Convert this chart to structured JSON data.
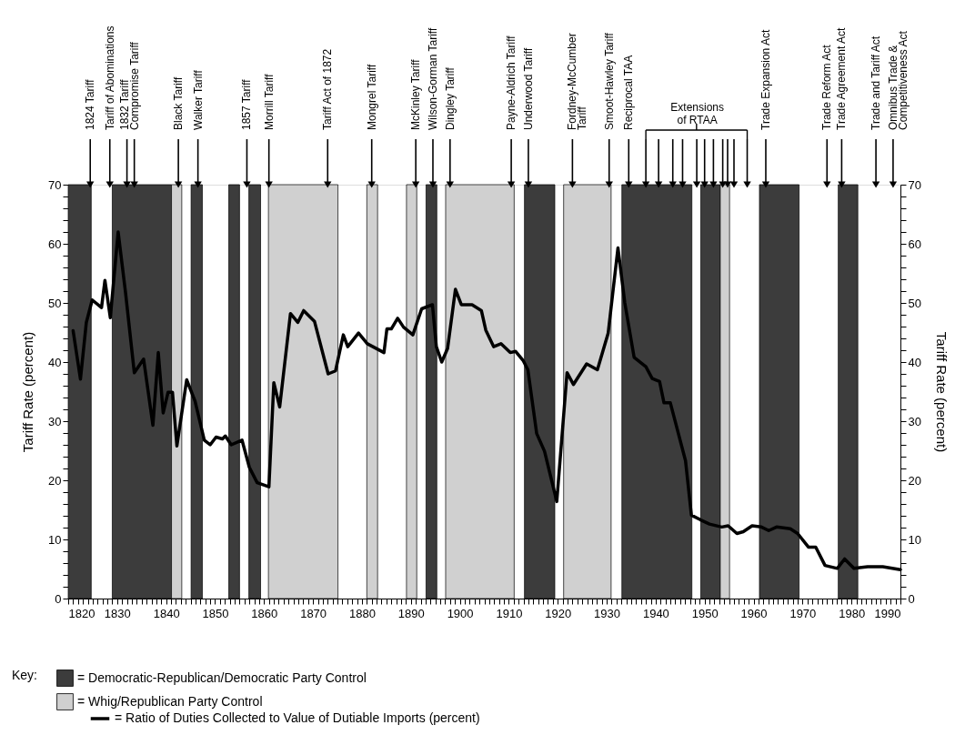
{
  "chart_data": {
    "type": "line",
    "ylabel": "Tariff Rate (percent)",
    "y2label": "Tariff Rate (percent)",
    "legend_title": "Key:",
    "legend": "bottom left",
    "xlim": [
      1820,
      1990
    ],
    "ylim": [
      0,
      70
    ],
    "y2lim": [
      0,
      70
    ],
    "xticks": [
      1820,
      {
        "value": 1821,
        "label": null
      },
      {
        "value": 1822,
        "label": null
      },
      {
        "value": 1823,
        "label": null
      },
      {
        "value": 1824,
        "label": null
      },
      {
        "value": 1825,
        "label": null
      },
      {
        "value": 1826,
        "label": null
      },
      {
        "value": 1827,
        "label": null
      },
      {
        "value": 1828,
        "label": null
      },
      {
        "value": 1829,
        "label": null
      },
      1830,
      {
        "value": 1831,
        "label": null
      },
      {
        "value": 1832,
        "label": null
      },
      {
        "value": 1833,
        "label": null
      },
      {
        "value": 1834,
        "label": null
      },
      {
        "value": 1835,
        "label": null
      },
      {
        "value": 1836,
        "label": null
      },
      {
        "value": 1837,
        "label": null
      },
      {
        "value": 1838,
        "label": null
      },
      {
        "value": 1839,
        "label": null
      },
      1840,
      {
        "value": 1841,
        "label": null
      },
      {
        "value": 1842,
        "label": null
      },
      {
        "value": 1843,
        "label": null
      },
      {
        "value": 1844,
        "label": null
      },
      {
        "value": 1845,
        "label": null
      },
      {
        "value": 1846,
        "label": null
      },
      {
        "value": 1847,
        "label": null
      },
      {
        "value": 1848,
        "label": null
      },
      {
        "value": 1849,
        "label": null
      },
      1850,
      {
        "value": 1851,
        "label": null
      },
      {
        "value": 1852,
        "label": null
      },
      {
        "value": 1853,
        "label": null
      },
      {
        "value": 1854,
        "label": null
      },
      {
        "value": 1855,
        "label": null
      },
      {
        "value": 1856,
        "label": null
      },
      {
        "value": 1857,
        "label": null
      },
      {
        "value": 1858,
        "label": null
      },
      {
        "value": 1859,
        "label": null
      },
      1860,
      {
        "value": 1861,
        "label": null
      },
      {
        "value": 1862,
        "label": null
      },
      {
        "value": 1863,
        "label": null
      },
      {
        "value": 1864,
        "label": null
      },
      {
        "value": 1865,
        "label": null
      },
      {
        "value": 1866,
        "label": null
      },
      {
        "value": 1867,
        "label": null
      },
      {
        "value": 1868,
        "label": null
      },
      {
        "value": 1869,
        "label": null
      },
      1870,
      {
        "value": 1871,
        "label": null
      },
      {
        "value": 1872,
        "label": null
      },
      {
        "value": 1873,
        "label": null
      },
      {
        "value": 1874,
        "label": null
      },
      {
        "value": 1875,
        "label": null
      },
      {
        "value": 1876,
        "label": null
      },
      {
        "value": 1877,
        "label": null
      },
      {
        "value": 1878,
        "label": null
      },
      {
        "value": 1879,
        "label": null
      },
      1880,
      {
        "value": 1881,
        "label": null
      },
      {
        "value": 1882,
        "label": null
      },
      {
        "value": 1883,
        "label": null
      },
      {
        "value": 1884,
        "label": null
      },
      {
        "value": 1885,
        "label": null
      },
      {
        "value": 1886,
        "label": null
      },
      {
        "value": 1887,
        "label": null
      },
      {
        "value": 1888,
        "label": null
      },
      {
        "value": 1889,
        "label": null
      },
      1890,
      {
        "value": 1891,
        "label": null
      },
      {
        "value": 1892,
        "label": null
      },
      {
        "value": 1893,
        "label": null
      },
      {
        "value": 1894,
        "label": null
      },
      {
        "value": 1895,
        "label": null
      },
      {
        "value": 1896,
        "label": null
      },
      {
        "value": 1897,
        "label": null
      },
      {
        "value": 1898,
        "label": null
      },
      {
        "value": 1899,
        "label": null
      },
      1900,
      {
        "value": 1901,
        "label": null
      },
      {
        "value": 1902,
        "label": null
      },
      {
        "value": 1903,
        "label": null
      },
      {
        "value": 1904,
        "label": null
      },
      {
        "value": 1905,
        "label": null
      },
      {
        "value": 1906,
        "label": null
      },
      {
        "value": 1907,
        "label": null
      },
      {
        "value": 1908,
        "label": null
      },
      {
        "value": 1909,
        "label": null
      },
      1910,
      {
        "value": 1911,
        "label": null
      },
      {
        "value": 1912,
        "label": null
      },
      {
        "value": 1913,
        "label": null
      },
      {
        "value": 1914,
        "label": null
      },
      {
        "value": 1915,
        "label": null
      },
      {
        "value": 1916,
        "label": null
      },
      {
        "value": 1917,
        "label": null
      },
      {
        "value": 1918,
        "label": null
      },
      {
        "value": 1919,
        "label": null
      },
      1920,
      {
        "value": 1921,
        "label": null
      },
      {
        "value": 1922,
        "label": null
      },
      {
        "value": 1923,
        "label": null
      },
      {
        "value": 1924,
        "label": null
      },
      {
        "value": 1925,
        "label": null
      },
      {
        "value": 1926,
        "label": null
      },
      {
        "value": 1927,
        "label": null
      },
      {
        "value": 1928,
        "label": null
      },
      {
        "value": 1929,
        "label": null
      },
      1930,
      {
        "value": 1931,
        "label": null
      },
      {
        "value": 1932,
        "label": null
      },
      {
        "value": 1933,
        "label": null
      },
      {
        "value": 1934,
        "label": null
      },
      {
        "value": 1935,
        "label": null
      },
      {
        "value": 1936,
        "label": null
      },
      {
        "value": 1937,
        "label": null
      },
      {
        "value": 1938,
        "label": null
      },
      {
        "value": 1939,
        "label": null
      },
      1940,
      {
        "value": 1941,
        "label": null
      },
      {
        "value": 1942,
        "label": null
      },
      {
        "value": 1943,
        "label": null
      },
      {
        "value": 1944,
        "label": null
      },
      {
        "value": 1945,
        "label": null
      },
      {
        "value": 1946,
        "label": null
      },
      {
        "value": 1947,
        "label": null
      },
      {
        "value": 1948,
        "label": null
      },
      {
        "value": 1949,
        "label": null
      },
      1950,
      {
        "value": 1951,
        "label": null
      },
      {
        "value": 1952,
        "label": null
      },
      {
        "value": 1953,
        "label": null
      },
      {
        "value": 1954,
        "label": null
      },
      {
        "value": 1955,
        "label": null
      },
      {
        "value": 1956,
        "label": null
      },
      {
        "value": 1957,
        "label": null
      },
      {
        "value": 1958,
        "label": null
      },
      {
        "value": 1959,
        "label": null
      },
      1960,
      {
        "value": 1961,
        "label": null
      },
      {
        "value": 1962,
        "label": null
      },
      {
        "value": 1963,
        "label": null
      },
      {
        "value": 1964,
        "label": null
      },
      {
        "value": 1965,
        "label": null
      },
      {
        "value": 1966,
        "label": null
      },
      {
        "value": 1967,
        "label": null
      },
      {
        "value": 1968,
        "label": null
      },
      {
        "value": 1969,
        "label": null
      },
      1970,
      {
        "value": 1971,
        "label": null
      },
      {
        "value": 1972,
        "label": null
      },
      {
        "value": 1973,
        "label": null
      },
      {
        "value": 1974,
        "label": null
      },
      {
        "value": 1975,
        "label": null
      },
      {
        "value": 1976,
        "label": null
      },
      {
        "value": 1977,
        "label": null
      },
      {
        "value": 1978,
        "label": null
      },
      {
        "value": 1979,
        "label": null
      },
      1980,
      {
        "value": 1981,
        "label": null
      },
      {
        "value": 1982,
        "label": null
      },
      {
        "value": 1983,
        "label": null
      },
      {
        "value": 1984,
        "label": null
      },
      {
        "value": 1985,
        "label": null
      },
      {
        "value": 1986,
        "label": null
      },
      {
        "value": 1987,
        "label": null
      },
      {
        "value": 1988,
        "label": null
      },
      {
        "value": 1989,
        "label": null
      },
      1990
    ],
    "yticks": [
      0,
      {
        "value": 2,
        "label": null
      },
      {
        "value": 4,
        "label": null
      },
      {
        "value": 6,
        "label": null
      },
      {
        "value": 8,
        "label": null
      },
      10,
      {
        "value": 12,
        "label": null
      },
      {
        "value": 14,
        "label": null
      },
      {
        "value": 16,
        "label": null
      },
      {
        "value": 18,
        "label": null
      },
      20,
      {
        "value": 22,
        "label": null
      },
      {
        "value": 24,
        "label": null
      },
      {
        "value": 26,
        "label": null
      },
      {
        "value": 28,
        "label": null
      },
      30,
      {
        "value": 32,
        "label": null
      },
      {
        "value": 34,
        "label": null
      },
      {
        "value": 36,
        "label": null
      },
      {
        "value": 38,
        "label": null
      },
      40,
      {
        "value": 42,
        "label": null
      },
      {
        "value": 44,
        "label": null
      },
      {
        "value": 46,
        "label": null
      },
      {
        "value": 48,
        "label": null
      },
      50,
      {
        "value": 52,
        "label": null
      },
      {
        "value": 54,
        "label": null
      },
      {
        "value": 56,
        "label": null
      },
      {
        "value": 58,
        "label": null
      },
      60,
      {
        "value": 62,
        "label": null
      },
      {
        "value": 64,
        "label": null
      },
      {
        "value": 66,
        "label": null
      },
      {
        "value": 68,
        "label": null
      },
      70
    ],
    "y2ticks": [
      0,
      {
        "value": 2,
        "label": null
      },
      {
        "value": 4,
        "label": null
      },
      {
        "value": 6,
        "label": null
      },
      {
        "value": 8,
        "label": null
      },
      10,
      {
        "value": 12,
        "label": null
      },
      {
        "value": 14,
        "label": null
      },
      {
        "value": 16,
        "label": null
      },
      {
        "value": 18,
        "label": null
      },
      20,
      {
        "value": 22,
        "label": null
      },
      {
        "value": 24,
        "label": null
      },
      {
        "value": 26,
        "label": null
      },
      {
        "value": 28,
        "label": null
      },
      30,
      {
        "value": 32,
        "label": null
      },
      {
        "value": 34,
        "label": null
      },
      {
        "value": 36,
        "label": null
      },
      {
        "value": 38,
        "label": null
      },
      40,
      {
        "value": 42,
        "label": null
      },
      {
        "value": 44,
        "label": null
      },
      {
        "value": 46,
        "label": null
      },
      {
        "value": 48,
        "label": null
      },
      50,
      {
        "value": 52,
        "label": null
      },
      {
        "value": 54,
        "label": null
      },
      {
        "value": 56,
        "label": null
      },
      {
        "value": 58,
        "label": null
      },
      60,
      {
        "value": 62,
        "label": null
      },
      {
        "value": 64,
        "label": null
      },
      {
        "value": 66,
        "label": null
      },
      {
        "value": 68,
        "label": null
      },
      70
    ],
    "bands": [
      {
        "axis": "x",
        "from": 1820,
        "to": 1824.7,
        "label": "= Democratic-Republican/Democratic Party Control",
        "color": "#3c3c3c"
      },
      {
        "axis": "x",
        "from": 1829,
        "to": 1841.1,
        "color": "#3c3c3c"
      },
      {
        "axis": "x",
        "from": 1841.1,
        "to": 1843.2,
        "color": "#d0d0d0"
      },
      {
        "axis": "x",
        "from": 1845.1,
        "to": 1847.4,
        "color": "#3c3c3c"
      },
      {
        "axis": "x",
        "from": 1852.8,
        "to": 1855,
        "color": "#3c3c3c"
      },
      {
        "axis": "x",
        "from": 1856.9,
        "to": 1859.3,
        "color": "#3c3c3c"
      },
      {
        "axis": "x",
        "from": 1860.9,
        "to": 1875.1,
        "label": "= Whig/Republican Party Control",
        "color": "#d0d0d0"
      },
      {
        "axis": "x",
        "from": 1881,
        "to": 1883.2,
        "color": "#d0d0d0"
      },
      {
        "axis": "x",
        "from": 1889.1,
        "to": 1891.2,
        "color": "#d0d0d0"
      },
      {
        "axis": "x",
        "from": 1893.1,
        "to": 1895.3,
        "color": "#3c3c3c"
      },
      {
        "axis": "x",
        "from": 1897.1,
        "to": 1911.1,
        "color": "#d0d0d0"
      },
      {
        "axis": "x",
        "from": 1913.2,
        "to": 1919.4,
        "color": "#3c3c3c"
      },
      {
        "axis": "x",
        "from": 1921.2,
        "to": 1930.9,
        "color": "#d0d0d0"
      },
      {
        "axis": "x",
        "from": 1933.1,
        "to": 1947.4,
        "color": "#3c3c3c"
      },
      {
        "axis": "x",
        "from": 1949.2,
        "to": 1953.2,
        "color": "#3c3c3c"
      },
      {
        "axis": "x",
        "from": 1953.2,
        "to": 1955.1,
        "color": "#d0d0d0"
      },
      {
        "axis": "x",
        "from": 1961.2,
        "to": 1969.3,
        "color": "#3c3c3c"
      },
      {
        "axis": "x",
        "from": 1977.3,
        "to": 1981.3,
        "color": "#3c3c3c"
      }
    ],
    "series": [
      {
        "name": "= Ratio of Duties Collected to Value of Dutiable Imports (percent)",
        "color": "#000000",
        "line_style": "solid",
        "x": [
          1821,
          1822.5,
          1823.7,
          1824.9,
          1826.8,
          1827.5,
          1828.6,
          1830.2,
          1831.7,
          1833.5,
          1835.4,
          1837.3,
          1838.4,
          1839.4,
          1840.4,
          1841.3,
          1842.2,
          1844.2,
          1845.9,
          1847.8,
          1849,
          1850.2,
          1851.5,
          1852.1,
          1853.3,
          1855.5,
          1857,
          1858.6,
          1861,
          1862,
          1863.2,
          1865.4,
          1866.9,
          1868.1,
          1870.3,
          1873.1,
          1874.6,
          1876.2,
          1877.1,
          1879.3,
          1881.1,
          1884.5,
          1885.1,
          1886,
          1887.3,
          1888.5,
          1890.4,
          1892.2,
          1894.4,
          1895.2,
          1896.3,
          1897.5,
          1899.1,
          1900.3,
          1902.5,
          1904.4,
          1905.3,
          1906.9,
          1908.4,
          1910.3,
          1911.4,
          1912.9,
          1913.9,
          1915.7,
          1917.3,
          1919.8,
          1921.9,
          1923.2,
          1925.9,
          1928.1,
          1930.3,
          1932.3,
          1933.7,
          1935.6,
          1938,
          1939.3,
          1940.8,
          1941.7,
          1943,
          1946.1,
          1947.3,
          1949.2,
          1951,
          1953.5,
          1954.8,
          1956.6,
          1957.9,
          1959.7,
          1961.6,
          1963.1,
          1964.7,
          1967.5,
          1969,
          1971.2,
          1972.7,
          1974.6,
          1977.1,
          1978.6,
          1980.5,
          1983.3,
          1986.4,
          1990
        ],
        "values": [
          45.3,
          37.1,
          46.7,
          50.5,
          49.2,
          53.8,
          47.5,
          62,
          51.8,
          38.2,
          40.5,
          29.3,
          41.6,
          31.4,
          34.9,
          34.9,
          25.8,
          37,
          33.4,
          26.8,
          26,
          27.3,
          27,
          27.5,
          26,
          26.8,
          22.2,
          19.6,
          18.9,
          36.5,
          32.4,
          48.2,
          46.7,
          48.7,
          46.9,
          38,
          38.5,
          44.6,
          42.6,
          44.9,
          43.1,
          41.6,
          45.6,
          45.6,
          47.4,
          45.9,
          44.6,
          49,
          49.7,
          42.6,
          40,
          42.3,
          52.3,
          49.7,
          49.7,
          48.7,
          45.4,
          42.6,
          43.1,
          41.6,
          41.8,
          40.3,
          38.7,
          27.9,
          24.9,
          16.4,
          38.2,
          36.2,
          39.7,
          38.7,
          44.9,
          59.3,
          50,
          40.8,
          39.2,
          37.2,
          36.7,
          33.1,
          33.1,
          23.3,
          14.1,
          13.3,
          12.6,
          12.1,
          12.3,
          11,
          11.3,
          12.3,
          12.1,
          11.5,
          12.1,
          11.8,
          11,
          8.7,
          8.7,
          5.6,
          5.1,
          6.7,
          5.1,
          5.4,
          5.4,
          4.9
        ]
      },
      {
        "type": "scatter",
        "color": "#000000",
        "marker": "triangle",
        "x": [
          1824.5,
          1828.5,
          1832,
          1833.5,
          1842.5,
          1846.5,
          1856.5,
          1861,
          1873,
          1882,
          1891,
          1894.5,
          1898,
          1910.5,
          1914,
          1923,
          1930.5,
          1934.5,
          1962.5,
          1975,
          1978,
          1985,
          1988.5
        ],
        "values": [
          70,
          70,
          70,
          70,
          70,
          70,
          70,
          70,
          70,
          70,
          70,
          70,
          70,
          70,
          70,
          70,
          70,
          70,
          70,
          70,
          70,
          70,
          70
        ]
      },
      {
        "type": "scatter",
        "color": "#000000",
        "marker": "triangle",
        "x": [
          1938,
          1940.6,
          1943.5,
          1945.5,
          1948.4,
          1950,
          1951.8,
          1953.7,
          1954.7,
          1956,
          1958.7
        ],
        "values": [
          70,
          70,
          70,
          70,
          70,
          70,
          70,
          70,
          70,
          70,
          70
        ]
      }
    ],
    "annotations": [
      {
        "text": "1824 Tariff",
        "x": 1824.5,
        "y": 70
      },
      {
        "text": "Tariff of Abominations",
        "x": 1828.5,
        "y": 70
      },
      {
        "text": "1832 Tariff",
        "x": 1831.5,
        "y": 70
      },
      {
        "text": "Compromise Tariff",
        "x": 1833.5,
        "y": 70
      },
      {
        "text": "Black Tariff",
        "x": 1842.5,
        "y": 70
      },
      {
        "text": "Walker Tariff",
        "x": 1846.5,
        "y": 70
      },
      {
        "text": "1857 Tariff",
        "x": 1856.5,
        "y": 70
      },
      {
        "text": "Morrill Tariff",
        "x": 1861,
        "y": 70
      },
      {
        "text": "Tariff Act of 1872",
        "x": 1873,
        "y": 70
      },
      {
        "text": "Mongrel Tariff",
        "x": 1882,
        "y": 70
      },
      {
        "text": "McKinley Tariff",
        "x": 1891,
        "y": 70
      },
      {
        "text": "Wilson-Gorman Tariff",
        "x": 1894.5,
        "y": 70
      },
      {
        "text": "Dingley Tariff",
        "x": 1898,
        "y": 70
      },
      {
        "text": "Payne-Aldrich Tariff",
        "x": 1910.5,
        "y": 70
      },
      {
        "text": "Underwood Tariff",
        "x": 1914,
        "y": 70
      },
      {
        "text": "Fordney-McCumber\nTariff",
        "x": 1923,
        "y": 70
      },
      {
        "text": "Smoot-Hawley Tariff",
        "x": 1930.5,
        "y": 70
      },
      {
        "text": "Reciprocal TAA",
        "x": 1934.5,
        "y": 70
      },
      {
        "text": "Extensions\nof RTAA",
        "x": 1948.5,
        "y": 70
      },
      {
        "text": "Trade Expansion Act",
        "x": 1962.5,
        "y": 70
      },
      {
        "text": "Trade Reform Act",
        "x": 1975,
        "y": 70
      },
      {
        "text": "Trade Agreement Act",
        "x": 1978,
        "y": 70
      },
      {
        "text": "Trade and Tariff Act",
        "x": 1985,
        "y": 70
      },
      {
        "text": "Omnibus Trade &\nCompetitiveness Act",
        "x": 1988.5,
        "y": 70
      }
    ]
  }
}
